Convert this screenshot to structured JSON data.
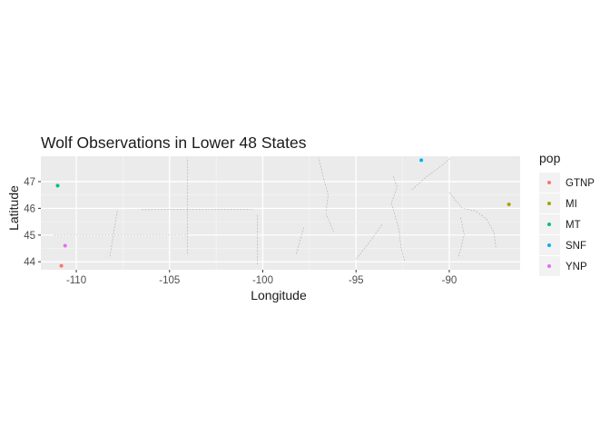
{
  "chart_data": {
    "type": "scatter",
    "title": "Wolf Observations in Lower 48 States",
    "xlabel": "Longitude",
    "ylabel": "Latitude",
    "xlim": [
      -111.9,
      -86.2
    ],
    "ylim": [
      43.7,
      47.95
    ],
    "x_ticks": [
      -110,
      -105,
      -100,
      -95,
      -90
    ],
    "x_tick_labels": [
      "-110",
      "-105",
      "-100",
      "-95",
      "-90"
    ],
    "y_ticks": [
      44,
      45,
      46,
      47
    ],
    "y_tick_labels": [
      "44",
      "45",
      "46",
      "47"
    ],
    "grid": true,
    "legend_title": "pop",
    "legend_position": "right",
    "background_layer": "faint gray map lines of state and county boundaries",
    "series": [
      {
        "name": "GTNP",
        "color": "#F8766D",
        "points": [
          {
            "x": -110.8,
            "y": 43.85
          }
        ]
      },
      {
        "name": "MI",
        "color": "#A3A500",
        "points": [
          {
            "x": -86.8,
            "y": 46.15
          }
        ]
      },
      {
        "name": "MT",
        "color": "#00BF7D",
        "points": [
          {
            "x": -111.0,
            "y": 46.85
          }
        ]
      },
      {
        "name": "SNF",
        "color": "#00B0F6",
        "points": [
          {
            "x": -91.5,
            "y": 47.8
          }
        ]
      },
      {
        "name": "YNP",
        "color": "#E76BF3",
        "points": [
          {
            "x": -110.6,
            "y": 44.6
          }
        ]
      }
    ]
  }
}
